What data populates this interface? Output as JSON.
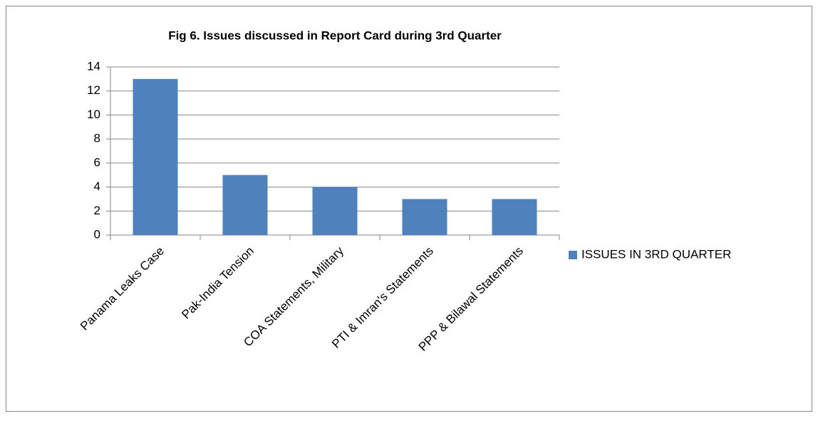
{
  "chart_data": {
    "type": "bar",
    "title": "Fig 6. Issues discussed in Report Card during 3rd Quarter",
    "categories": [
      "Panama Leaks Case",
      "Pak-India Tension",
      "COA Statements, Military",
      "PTI & Imran's Statements",
      "PPP & Bilawal Statements"
    ],
    "series": [
      {
        "name": "ISSUES IN 3RD QUARTER",
        "color": "#4f81bd",
        "values": [
          13,
          5,
          4,
          3,
          3
        ]
      }
    ],
    "ylim": [
      0,
      14
    ],
    "yticks": [
      0,
      2,
      4,
      6,
      8,
      10,
      12,
      14
    ],
    "grid": true,
    "legend": "right"
  }
}
